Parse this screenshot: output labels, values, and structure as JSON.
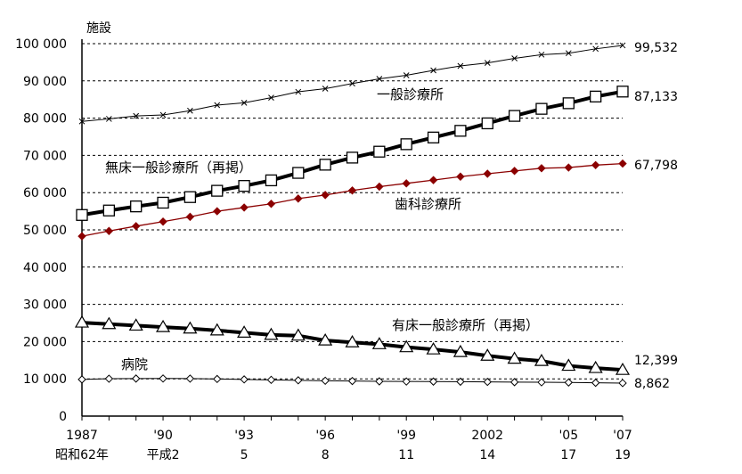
{
  "chart_data": {
    "type": "line",
    "ylabel": "施設",
    "ylim": [
      0,
      100000
    ],
    "yticks": [
      "0",
      "10 000",
      "20 000",
      "30 000",
      "40 000",
      "50 000",
      "60 000",
      "70 000",
      "80 000",
      "90 000",
      "100 000"
    ],
    "grid": true,
    "x": [
      1987,
      1988,
      1989,
      1990,
      1991,
      1992,
      1993,
      1994,
      1995,
      1996,
      1997,
      1998,
      1999,
      2000,
      2001,
      2002,
      2003,
      2004,
      2005,
      2006,
      2007
    ],
    "xtick_labels": [
      {
        "x": 1987,
        "line1": "1987",
        "line2": "昭和62年"
      },
      {
        "x": 1990,
        "line1": "'90",
        "line2": "平成2"
      },
      {
        "x": 1993,
        "line1": "'93",
        "line2": "5"
      },
      {
        "x": 1996,
        "line1": "'96",
        "line2": "8"
      },
      {
        "x": 1999,
        "line1": "'99",
        "line2": "11"
      },
      {
        "x": 2002,
        "line1": "2002",
        "line2": "14"
      },
      {
        "x": 2005,
        "line1": "'05",
        "line2": "17"
      },
      {
        "x": 2007,
        "line1": "'07",
        "line2": "19"
      }
    ],
    "series": [
      {
        "name": "一般診療所",
        "marker": "x",
        "color": "#000000",
        "width": 1,
        "end_label": "99,532",
        "values": [
          79134,
          79800,
          80600,
          80852,
          82000,
          83500,
          84128,
          85500,
          87069,
          87909,
          89292,
          90556,
          91500,
          92824,
          94019,
          94819,
          96050,
          97051,
          97442,
          98609,
          99532
        ]
      },
      {
        "name": "無床一般診療所（再掲）",
        "marker": "square",
        "color": "#000000",
        "width": 4,
        "end_label": "87,133",
        "values": [
          54000,
          55200,
          56300,
          57300,
          58800,
          60500,
          61800,
          63300,
          65300,
          67500,
          69400,
          71000,
          73000,
          74800,
          76600,
          78600,
          80600,
          82500,
          84000,
          85800,
          87133
        ]
      },
      {
        "name": "歯科診療所",
        "marker": "diamond-filled",
        "color": "#8b0000",
        "width": 1.3,
        "end_label": "67,798",
        "values": [
          48300,
          49700,
          51000,
          52216,
          53500,
          55000,
          56000,
          57000,
          58407,
          59357,
          60579,
          61600,
          62484,
          63361,
          64297,
          65073,
          65828,
          66557,
          66732,
          67392,
          67798
        ]
      },
      {
        "name": "有床一般診療所（再掲）",
        "marker": "triangle",
        "color": "#000000",
        "width": 4,
        "end_label": "12,399",
        "values": [
          25100,
          24700,
          24300,
          23900,
          23500,
          23000,
          22400,
          21800,
          21600,
          20300,
          19800,
          19300,
          18500,
          17900,
          17200,
          16200,
          15400,
          14800,
          13500,
          12900,
          12399
        ]
      },
      {
        "name": "病院",
        "marker": "diamond-open",
        "color": "#000000",
        "width": 1,
        "end_label": "8,862",
        "values": [
          9841,
          10034,
          10081,
          10096,
          10066,
          9963,
          9844,
          9731,
          9606,
          9490,
          9413,
          9333,
          9286,
          9266,
          9239,
          9187,
          9122,
          9077,
          9026,
          8943,
          8862
        ]
      }
    ]
  }
}
